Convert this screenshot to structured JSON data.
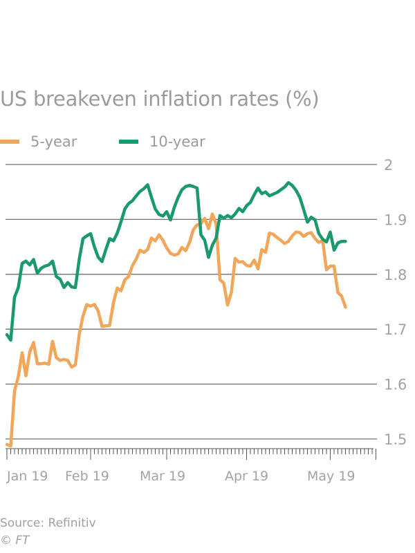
{
  "chart_data": {
    "type": "line",
    "title": "US breakeven inflation rates (%)",
    "xlabel": "",
    "ylabel": "",
    "ylim": [
      1.5,
      2.0
    ],
    "yticks": [
      1.5,
      1.6,
      1.7,
      1.8,
      1.9,
      2
    ],
    "ytick_labels": [
      "1.5",
      "1.6",
      "1.7",
      "1.8",
      "1.9",
      "2"
    ],
    "y_axis_side": "right",
    "grid": true,
    "legend": "top-left",
    "x_tick_labels": [
      "Jan 19",
      "Feb 19",
      "Mar 19",
      "Apr 19",
      "May 19"
    ],
    "x_range": [
      "2019-01-02",
      "2019-05-24"
    ],
    "x_unit": "trading day index (0 = 2 Jan 2019)",
    "series": [
      {
        "name": "5-year",
        "color": "#f2a65a",
        "x": [
          0,
          1,
          2,
          3,
          4,
          5,
          6,
          7,
          8,
          9,
          10,
          11,
          12,
          13,
          14,
          15,
          16,
          17,
          18,
          19,
          20,
          21,
          22,
          23,
          24,
          25,
          26,
          27,
          28,
          29,
          30,
          31,
          32,
          33,
          34,
          35,
          36,
          37,
          38,
          39,
          40,
          41,
          42,
          43,
          44,
          45,
          46,
          47,
          48,
          49,
          50,
          51,
          52,
          53,
          54,
          55,
          56,
          57,
          58,
          59,
          60,
          61,
          62,
          63,
          64,
          65,
          66,
          67,
          68,
          69,
          70,
          71,
          72,
          73,
          74,
          75,
          76,
          77,
          78,
          79,
          80,
          81,
          82,
          83,
          84,
          85,
          86,
          87,
          88,
          89,
          90,
          91,
          92,
          93,
          94,
          95,
          96,
          97
        ],
        "values": [
          1.49,
          1.487,
          1.587,
          1.614,
          1.657,
          1.615,
          1.658,
          1.676,
          1.637,
          1.637,
          1.638,
          1.636,
          1.678,
          1.648,
          1.643,
          1.645,
          1.643,
          1.631,
          1.635,
          1.69,
          1.724,
          1.745,
          1.742,
          1.745,
          1.733,
          1.705,
          1.706,
          1.707,
          1.748,
          1.775,
          1.77,
          1.79,
          1.796,
          1.816,
          1.828,
          1.844,
          1.84,
          1.845,
          1.866,
          1.861,
          1.872,
          1.862,
          1.848,
          1.838,
          1.835,
          1.837,
          1.849,
          1.843,
          1.858,
          1.881,
          1.89,
          1.892,
          1.902,
          1.883,
          1.91,
          1.892,
          1.79,
          1.784,
          1.744,
          1.767,
          1.829,
          1.822,
          1.823,
          1.816,
          1.815,
          1.826,
          1.81,
          1.845,
          1.84,
          1.875,
          1.873,
          1.867,
          1.862,
          1.856,
          1.86,
          1.87,
          1.877,
          1.876,
          1.869,
          1.874,
          1.876,
          1.865,
          1.858,
          1.862,
          1.808,
          1.815,
          1.815,
          1.767,
          1.76,
          1.74,
          1.775,
          1.738,
          1.752,
          1.755,
          1.754,
          1.754,
          1.754,
          1.754
        ]
      },
      {
        "name": "10-year",
        "color": "#1a9a6c",
        "x": [
          0,
          1,
          2,
          3,
          4,
          5,
          6,
          7,
          8,
          9,
          10,
          11,
          12,
          13,
          14,
          15,
          16,
          17,
          18,
          19,
          20,
          21,
          22,
          23,
          24,
          25,
          26,
          27,
          28,
          29,
          30,
          31,
          32,
          33,
          34,
          35,
          36,
          37,
          38,
          39,
          40,
          41,
          42,
          43,
          44,
          45,
          46,
          47,
          48,
          49,
          50,
          51,
          52,
          53,
          54,
          55,
          56,
          57,
          58,
          59,
          60,
          61,
          62,
          63,
          64,
          65,
          66,
          67,
          68,
          69,
          70,
          71,
          72,
          73,
          74,
          75,
          76,
          77,
          78,
          79,
          80,
          81,
          82,
          83,
          84,
          85,
          86,
          87,
          88,
          89,
          90,
          91,
          92,
          93,
          94,
          95,
          96,
          97
        ],
        "values": [
          1.69,
          1.68,
          1.758,
          1.776,
          1.82,
          1.824,
          1.817,
          1.827,
          1.802,
          1.811,
          1.815,
          1.817,
          1.824,
          1.796,
          1.791,
          1.776,
          1.785,
          1.777,
          1.776,
          1.827,
          1.865,
          1.87,
          1.874,
          1.85,
          1.831,
          1.823,
          1.845,
          1.865,
          1.861,
          1.875,
          1.896,
          1.919,
          1.929,
          1.934,
          1.943,
          1.951,
          1.956,
          1.963,
          1.94,
          1.919,
          1.909,
          1.906,
          1.914,
          1.899,
          1.922,
          1.94,
          1.954,
          1.96,
          1.962,
          1.96,
          1.957,
          1.872,
          1.862,
          1.831,
          1.853,
          1.866,
          1.907,
          1.902,
          1.907,
          1.903,
          1.91,
          1.92,
          1.914,
          1.925,
          1.931,
          1.945,
          1.957,
          1.947,
          1.95,
          1.943,
          1.946,
          1.949,
          1.954,
          1.959,
          1.967,
          1.962,
          1.953,
          1.94,
          1.918,
          1.895,
          1.904,
          1.899,
          1.874,
          1.864,
          1.859,
          1.877,
          1.844,
          1.857,
          1.86,
          1.86,
          1.86,
          1.86,
          1.86,
          1.86,
          1.86,
          1.86,
          1.86,
          1.86
        ]
      }
    ]
  },
  "header": {
    "title": "US breakeven inflation rates (%)"
  },
  "legend": {
    "items": [
      {
        "label": "5-year",
        "color": "#f2a65a"
      },
      {
        "label": "10-year",
        "color": "#1a9a6c"
      }
    ]
  },
  "footer": {
    "source": "Source: Refinitiv",
    "copyright": "© FT"
  }
}
